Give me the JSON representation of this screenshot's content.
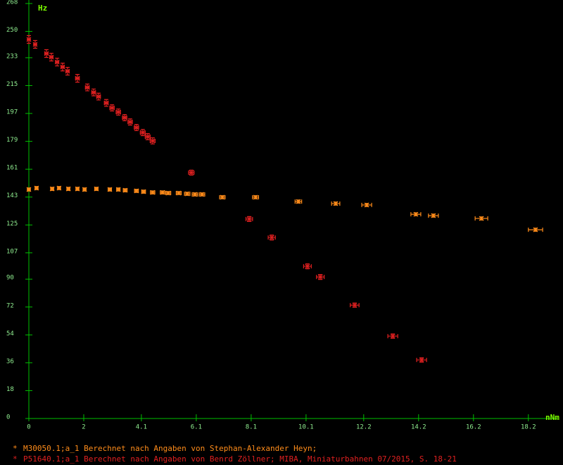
{
  "chart_data": {
    "type": "scatter",
    "x_label": "nNm",
    "y_label": "Hz",
    "xlim": [
      0,
      19
    ],
    "ylim": [
      0,
      268
    ],
    "xticks": [
      0,
      2,
      4.1,
      6.1,
      8.1,
      10.1,
      12.2,
      14.2,
      16.2,
      18.2
    ],
    "yticks": [
      0,
      18,
      36,
      54,
      72,
      90,
      107,
      125,
      143,
      161,
      179,
      197,
      215,
      233,
      250,
      268
    ],
    "series": [
      {
        "name": "M30050.1;a_1 Berechnet nach Angaben von Stephan-Alexander Heyn;",
        "color": "#ff8c1a",
        "x": [
          0,
          0.28,
          0.85,
          1.1,
          1.44,
          1.77,
          2.03,
          2.46,
          2.95,
          3.26,
          3.51,
          3.92,
          4.18,
          4.51,
          4.87,
          5.08,
          5.46,
          5.77,
          6.05,
          6.31,
          7.05,
          8.26,
          9.82,
          11.18,
          12.31,
          14.1,
          14.74,
          16.49,
          18.46
        ],
        "values": [
          147.9,
          148.8,
          148.3,
          148.8,
          148.3,
          148.3,
          147.9,
          148.3,
          147.9,
          147.9,
          147.4,
          147.0,
          146.5,
          146.0,
          146.0,
          145.6,
          145.6,
          145.1,
          144.7,
          144.7,
          142.9,
          142.9,
          140.1,
          138.8,
          137.9,
          131.9,
          131.0,
          129.2,
          121.9
        ],
        "xerr": [
          0.05,
          0.05,
          0.05,
          0.05,
          0.05,
          0.05,
          0.05,
          0.06,
          0.06,
          0.06,
          0.07,
          0.07,
          0.07,
          0.08,
          0.08,
          0.09,
          0.09,
          0.1,
          0.1,
          0.1,
          0.1,
          0.11,
          0.12,
          0.15,
          0.18,
          0.18,
          0.18,
          0.23,
          0.26
        ],
        "yerr": [
          1,
          1,
          1,
          1,
          1,
          1,
          1,
          1,
          1,
          1,
          1,
          1,
          1,
          1,
          1,
          1,
          1,
          1,
          1,
          1,
          1,
          1,
          1,
          1,
          1,
          1,
          1,
          1,
          1
        ]
      },
      {
        "name": "P51640.1;a_1 Berechnet nach Angaben von Benrd Zöllner; MIBA, Miniaturbahnen 07/2015, S. 18-21",
        "color": "#e02020",
        "x": [
          0,
          0.23,
          0.64,
          0.82,
          1.03,
          1.23,
          1.41,
          1.77,
          2.13,
          2.36,
          2.54,
          2.82,
          3.03,
          3.26,
          3.49,
          3.69,
          3.92,
          4.15,
          4.33,
          4.51,
          5.92,
          8.03,
          8.85,
          10.15,
          10.62,
          11.87,
          13.26,
          14.31
        ],
        "values": [
          244.8,
          241.6,
          235.7,
          233.4,
          230.2,
          227.0,
          224.3,
          219.7,
          213.8,
          210.6,
          207.9,
          203.8,
          200.6,
          197.9,
          194.3,
          191.5,
          187.9,
          184.7,
          182.0,
          179.3,
          158.8,
          128.8,
          116.9,
          98.3,
          91.4,
          73.2,
          53.2,
          37.8
        ],
        "xerr": [
          0.05,
          0.05,
          0.06,
          0.06,
          0.06,
          0.06,
          0.06,
          0.07,
          0.07,
          0.07,
          0.07,
          0.07,
          0.08,
          0.08,
          0.08,
          0.08,
          0.08,
          0.09,
          0.09,
          0.09,
          0.1,
          0.12,
          0.13,
          0.14,
          0.14,
          0.16,
          0.18,
          0.18
        ],
        "yerr": [
          2.5,
          2.5,
          2.5,
          2.5,
          2.5,
          2.5,
          2.5,
          2.5,
          2.2,
          2.2,
          2.2,
          2.2,
          2.0,
          2.0,
          2.0,
          2.0,
          2.0,
          2.0,
          2.0,
          2.0,
          1.6,
          1.6,
          1.6,
          1.6,
          1.6,
          1.4,
          1.4,
          1.4
        ]
      }
    ]
  }
}
